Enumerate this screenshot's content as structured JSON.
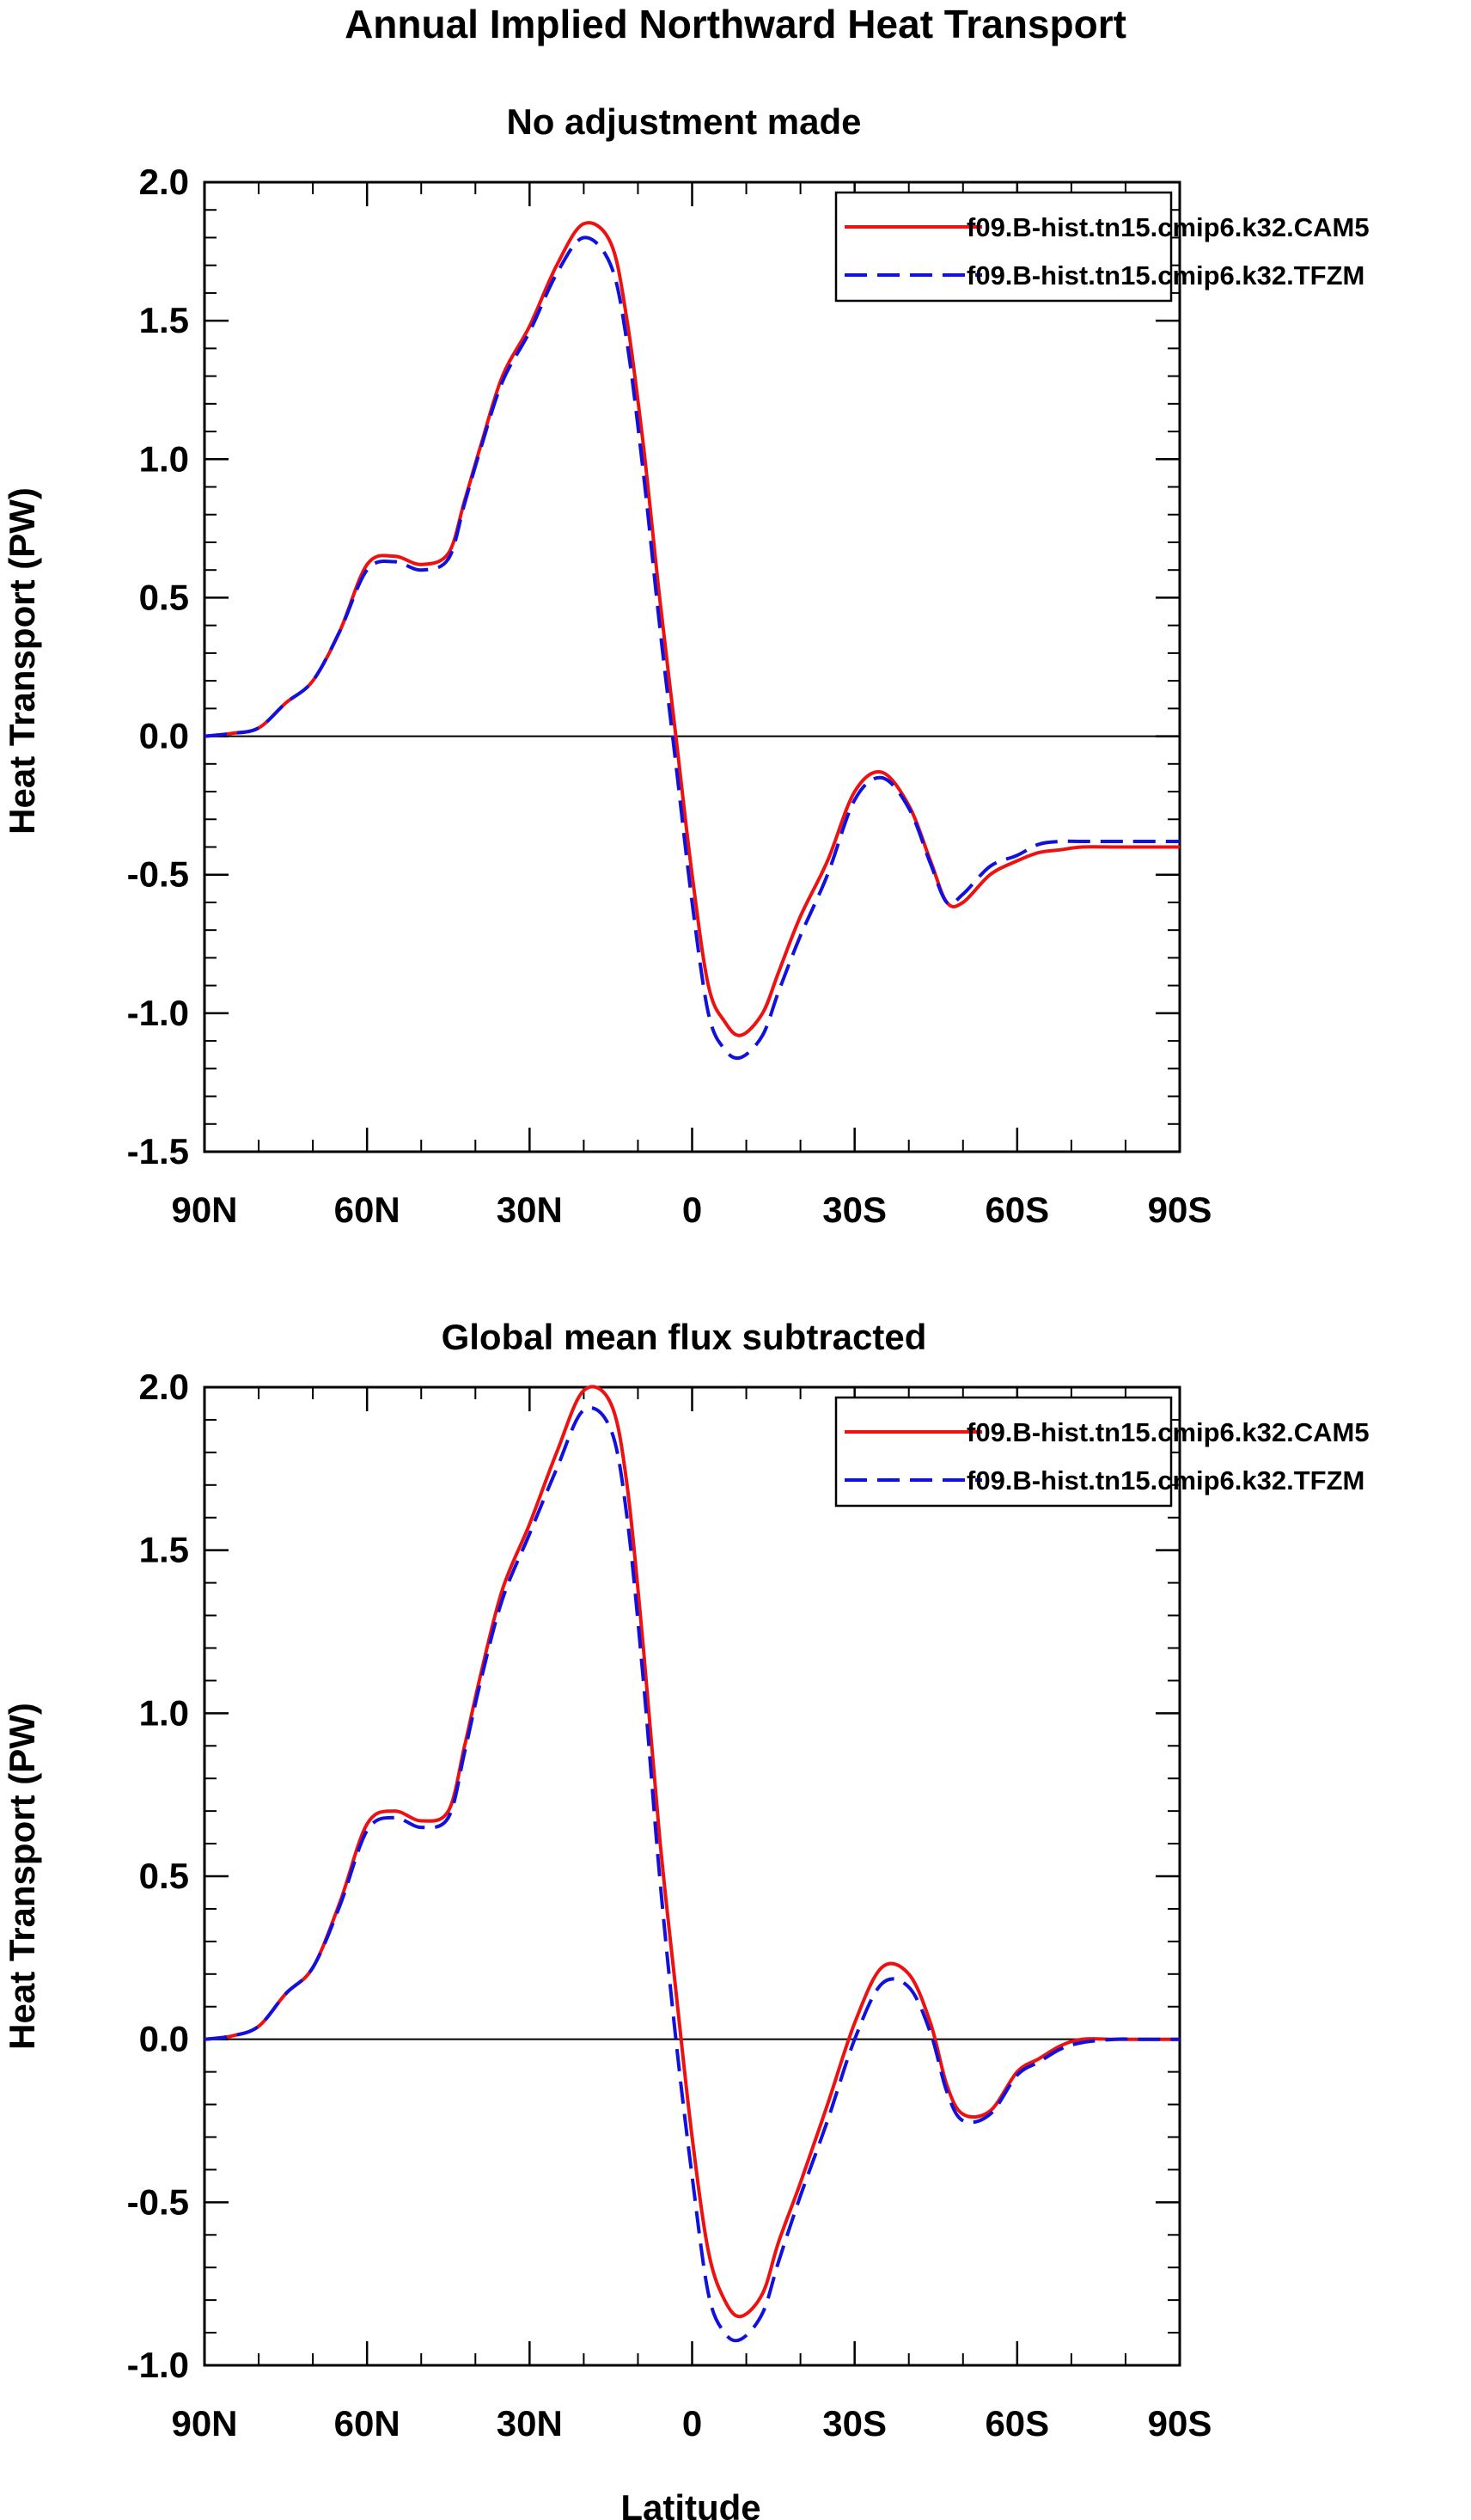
{
  "figure": {
    "title": "Annual Implied Northward Heat Transport",
    "xlabel": "Latitude"
  },
  "chart_data": [
    {
      "type": "line",
      "title": "No adjustment made",
      "xlabel": "",
      "ylabel": "Heat Transport (PW)",
      "xlim": [
        90,
        -90
      ],
      "ylim": [
        -1.5,
        2.0
      ],
      "xticks": [
        90,
        60,
        30,
        0,
        -30,
        -60,
        -90
      ],
      "xtick_labels": [
        "90N",
        "60N",
        "30N",
        "0",
        "30S",
        "60S",
        "90S"
      ],
      "yticks": [
        -1.5,
        -1.0,
        -0.5,
        0.0,
        0.5,
        1.0,
        1.5,
        2.0
      ],
      "ytick_labels": [
        "-1.5",
        "-1.0",
        "-0.5",
        "0.0",
        "0.5",
        "1.0",
        "1.5",
        "2.0"
      ],
      "zero_line": true,
      "grid": false,
      "legend": "top-right",
      "x": [
        90,
        85,
        80,
        75,
        70,
        65,
        60,
        55,
        50,
        45,
        42,
        39,
        35,
        30,
        25,
        20,
        15,
        12,
        9,
        6,
        3,
        0,
        -3,
        -6,
        -9,
        -13,
        -16,
        -20,
        -25,
        -30,
        -35,
        -40,
        -44,
        -47,
        -50,
        -55,
        -60,
        -64,
        -68,
        -72,
        -78,
        -82,
        -86,
        -90
      ],
      "series": [
        {
          "name": "f09.B-hist.tn15.cmip6.k32.CAM5",
          "color": "#ee1111",
          "dash": "solid",
          "values": [
            0.0,
            0.01,
            0.03,
            0.12,
            0.2,
            0.38,
            0.62,
            0.65,
            0.62,
            0.66,
            0.85,
            1.05,
            1.3,
            1.48,
            1.7,
            1.85,
            1.78,
            1.5,
            1.05,
            0.5,
            0.0,
            -0.5,
            -0.9,
            -1.03,
            -1.08,
            -1.0,
            -0.85,
            -0.65,
            -0.45,
            -0.2,
            -0.13,
            -0.25,
            -0.45,
            -0.6,
            -0.6,
            -0.5,
            -0.45,
            -0.42,
            -0.41,
            -0.4,
            -0.4,
            -0.4,
            -0.4,
            -0.4
          ]
        },
        {
          "name": "f09.B-hist.tn15.cmip6.k32.TFZM",
          "color": "#1111dd",
          "dash": "dashed",
          "values": [
            0.0,
            0.01,
            0.03,
            0.12,
            0.2,
            0.38,
            0.6,
            0.63,
            0.6,
            0.64,
            0.84,
            1.04,
            1.28,
            1.46,
            1.67,
            1.8,
            1.7,
            1.42,
            0.95,
            0.4,
            -0.1,
            -0.6,
            -1.0,
            -1.13,
            -1.16,
            -1.08,
            -0.92,
            -0.72,
            -0.5,
            -0.23,
            -0.15,
            -0.26,
            -0.46,
            -0.6,
            -0.57,
            -0.47,
            -0.43,
            -0.39,
            -0.38,
            -0.38,
            -0.38,
            -0.38,
            -0.38,
            -0.38
          ]
        }
      ]
    },
    {
      "type": "line",
      "title": "Global mean flux subtracted",
      "xlabel": "Latitude",
      "ylabel": "Heat Transport (PW)",
      "xlim": [
        90,
        -90
      ],
      "ylim": [
        -1.0,
        2.0
      ],
      "xticks": [
        90,
        60,
        30,
        0,
        -30,
        -60,
        -90
      ],
      "xtick_labels": [
        "90N",
        "60N",
        "30N",
        "0",
        "30S",
        "60S",
        "90S"
      ],
      "yticks": [
        -1.0,
        -0.5,
        0.0,
        0.5,
        1.0,
        1.5,
        2.0
      ],
      "ytick_labels": [
        "-1.0",
        "-0.5",
        "0.0",
        "0.5",
        "1.0",
        "1.5",
        "2.0"
      ],
      "zero_line": true,
      "grid": false,
      "legend": "top-right",
      "x": [
        90,
        85,
        80,
        75,
        70,
        65,
        60,
        55,
        50,
        45,
        42,
        39,
        35,
        30,
        25,
        20,
        15,
        12,
        9,
        6,
        3,
        0,
        -3,
        -6,
        -9,
        -13,
        -16,
        -20,
        -25,
        -30,
        -35,
        -40,
        -44,
        -47,
        -50,
        -55,
        -60,
        -64,
        -68,
        -72,
        -78,
        -82,
        -86,
        -90
      ],
      "series": [
        {
          "name": "f09.B-hist.tn15.cmip6.k32.CAM5",
          "color": "#ee1111",
          "dash": "solid",
          "values": [
            0.0,
            0.01,
            0.04,
            0.14,
            0.22,
            0.42,
            0.66,
            0.7,
            0.67,
            0.7,
            0.9,
            1.12,
            1.38,
            1.58,
            1.8,
            1.99,
            1.95,
            1.7,
            1.2,
            0.62,
            0.15,
            -0.3,
            -0.65,
            -0.8,
            -0.85,
            -0.78,
            -0.62,
            -0.44,
            -0.2,
            0.05,
            0.22,
            0.2,
            0.05,
            -0.14,
            -0.23,
            -0.22,
            -0.1,
            -0.06,
            -0.02,
            0.0,
            0.0,
            0.0,
            0.0,
            0.0
          ]
        },
        {
          "name": "f09.B-hist.tn15.cmip6.k32.TFZM",
          "color": "#1111dd",
          "dash": "dashed",
          "values": [
            0.0,
            0.01,
            0.04,
            0.14,
            0.22,
            0.41,
            0.64,
            0.68,
            0.65,
            0.68,
            0.88,
            1.1,
            1.35,
            1.55,
            1.75,
            1.93,
            1.87,
            1.6,
            1.1,
            0.5,
            0.0,
            -0.42,
            -0.78,
            -0.9,
            -0.92,
            -0.84,
            -0.68,
            -0.48,
            -0.25,
            0.0,
            0.17,
            0.16,
            0.02,
            -0.16,
            -0.25,
            -0.23,
            -0.11,
            -0.07,
            -0.03,
            -0.01,
            0.0,
            0.0,
            0.0,
            0.0
          ]
        }
      ]
    }
  ]
}
